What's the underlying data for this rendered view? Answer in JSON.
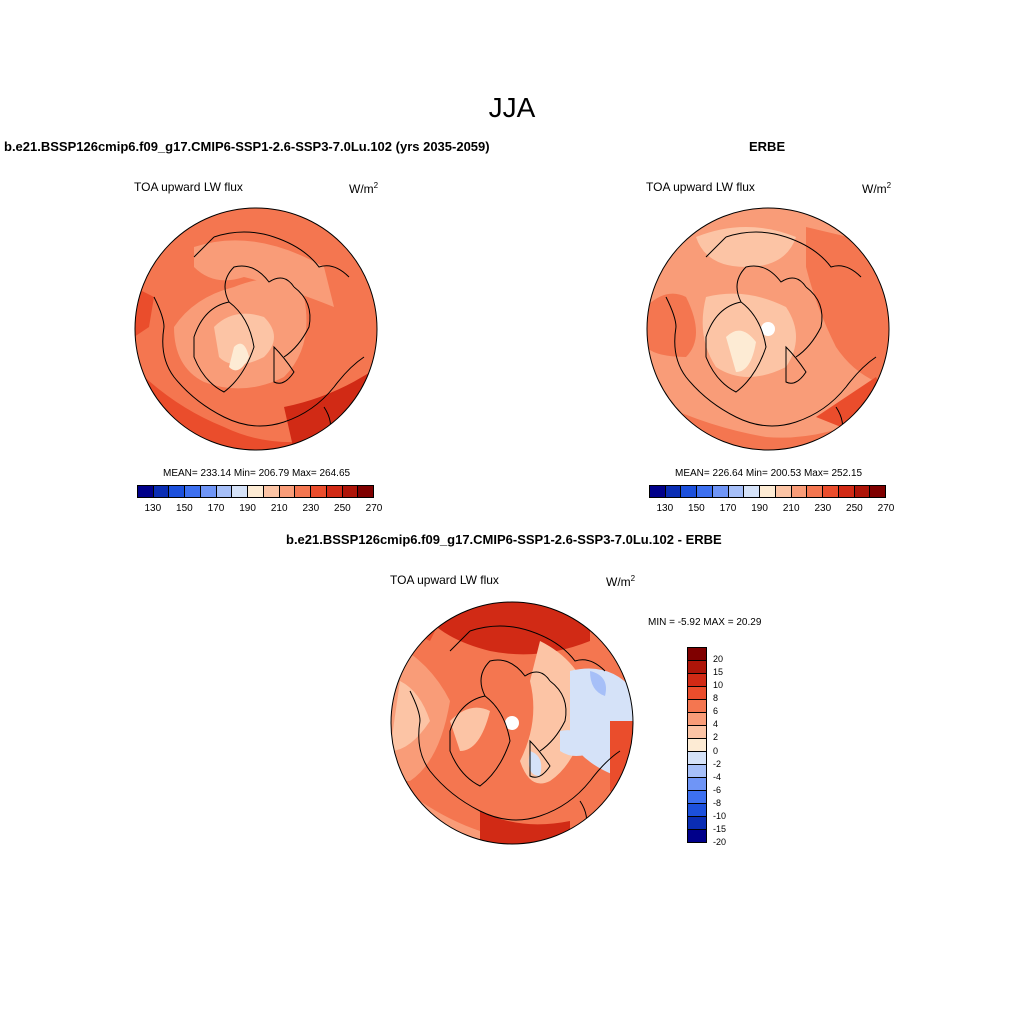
{
  "title": "JJA",
  "panels": {
    "left": {
      "case_title": "b.e21.BSSP126cmip6.f09_g17.CMIP6-SSP1-2.6-SSP3-7.0Lu.102 (yrs 2035-2059)",
      "variable": "TOA upward LW flux",
      "units_base": "W/m",
      "units_exp": "2",
      "stats": "MEAN= 233.14  Min= 206.79  Max= 264.65"
    },
    "right": {
      "case_title": "ERBE",
      "variable": "TOA upward LW flux",
      "units_base": "W/m",
      "units_exp": "2",
      "stats": "MEAN= 226.64  Min= 200.53  Max= 252.15"
    },
    "diff": {
      "case_title": "b.e21.BSSP126cmip6.f09_g17.CMIP6-SSP1-2.6-SSP3-7.0Lu.102 - ERBE",
      "variable": "TOA upward LW flux",
      "units_base": "W/m",
      "units_exp": "2",
      "minmax": "MIN =  -5.92 MAX =  20.29"
    }
  },
  "colorbar_abs": {
    "ticks": [
      "130",
      "150",
      "170",
      "190",
      "210",
      "230",
      "250",
      "270"
    ],
    "colors": [
      "#00008a",
      "#0a2db4",
      "#1c50dc",
      "#3d70f0",
      "#6f95f6",
      "#a6bff8",
      "#d5e2f8",
      "#fdebd4",
      "#fcc4a5",
      "#f99c78",
      "#f47650",
      "#ea4d2c",
      "#d12a15",
      "#ae1509",
      "#7f0000"
    ]
  },
  "colorbar_diff": {
    "ticks": [
      "20",
      "15",
      "10",
      "8",
      "6",
      "4",
      "2",
      "0",
      "-2",
      "-4",
      "-6",
      "-8",
      "-10",
      "-15",
      "-20"
    ],
    "colors": [
      "#7f0000",
      "#ae1509",
      "#d12a15",
      "#ea4d2c",
      "#f47650",
      "#f99c78",
      "#fcc4a5",
      "#fdebd4",
      "#d5e2f8",
      "#a6bff8",
      "#6f95f6",
      "#3d70f0",
      "#1c50dc",
      "#0a2db4",
      "#00008a"
    ]
  }
}
